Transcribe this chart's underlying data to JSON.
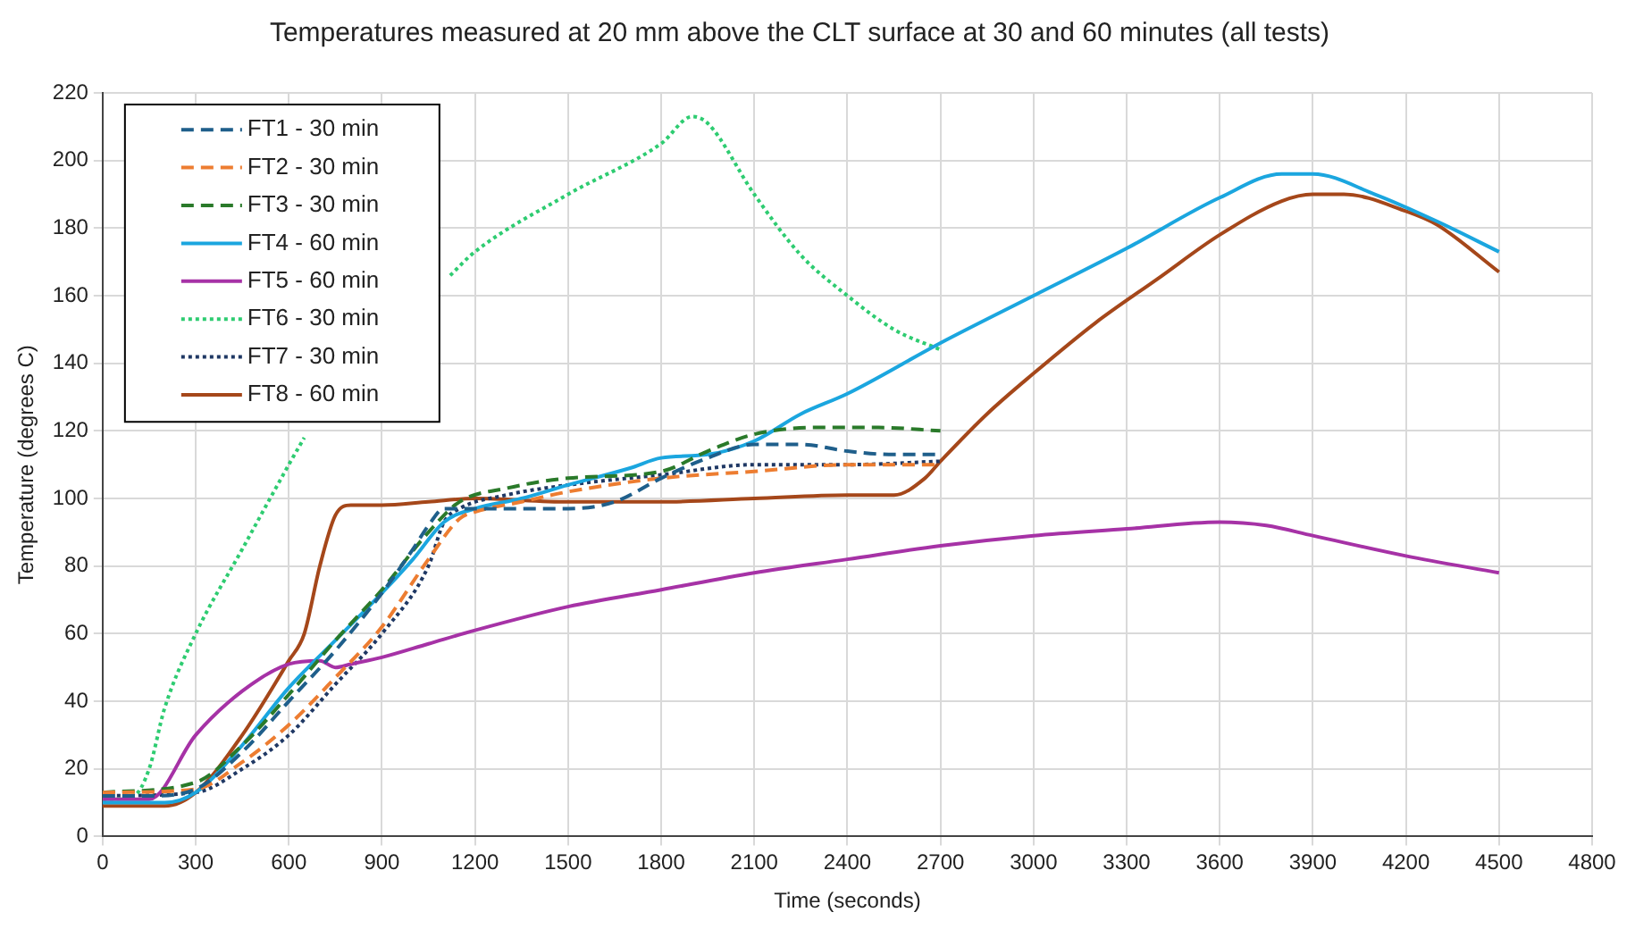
{
  "chart_data": {
    "type": "line",
    "title": "Temperatures measured at 20 mm above the CLT surface at 30 and 60 minutes (all tests)",
    "xlabel": "Time (seconds)",
    "ylabel": "Temperature (degrees C)",
    "xlim": [
      0,
      4800
    ],
    "xticks": [
      0,
      300,
      600,
      900,
      1200,
      1500,
      1800,
      2100,
      2400,
      2700,
      3000,
      3300,
      3600,
      3900,
      4200,
      4500,
      4800
    ],
    "ylim": [
      0,
      220
    ],
    "yticks": [
      0,
      20,
      40,
      60,
      80,
      100,
      120,
      140,
      160,
      180,
      200,
      220
    ],
    "grid": true,
    "legend": "top left",
    "marker": "none",
    "series": [
      {
        "name": "FT1 - 30 min",
        "color": "#1f5f8b",
        "line_style": "dashed",
        "x": [
          0,
          150,
          300,
          450,
          600,
          750,
          900,
          1000,
          1050,
          1100,
          1200,
          1300,
          1500,
          1650,
          1800,
          1950,
          2100,
          2250,
          2400,
          2550,
          2700
        ],
        "values": [
          12,
          12,
          14,
          25,
          40,
          55,
          72,
          85,
          92,
          97,
          97,
          97,
          97,
          99,
          106,
          112,
          116,
          116,
          114,
          113,
          113
        ]
      },
      {
        "name": "FT2 - 30 min",
        "color": "#ed7d31",
        "line_style": "dashed",
        "x": [
          0,
          300,
          450,
          600,
          750,
          900,
          1050,
          1150,
          1200,
          1350,
          1500,
          1800,
          2100,
          2400,
          2700
        ],
        "values": [
          13,
          14,
          22,
          33,
          47,
          62,
          82,
          94,
          96,
          99,
          102,
          106,
          108,
          110,
          110
        ]
      },
      {
        "name": "FT3 - 30 min",
        "color": "#2a7a2a",
        "line_style": "dashed",
        "x": [
          0,
          300,
          450,
          600,
          750,
          900,
          1050,
          1150,
          1300,
          1500,
          1800,
          1950,
          2100,
          2300,
          2500,
          2700
        ],
        "values": [
          13,
          16,
          27,
          42,
          58,
          73,
          90,
          99,
          103,
          106,
          108,
          114,
          119,
          121,
          121,
          120
        ]
      },
      {
        "name": "FT4 - 60 min",
        "color": "#1ba6df",
        "line_style": "solid",
        "x": [
          0,
          200,
          300,
          450,
          600,
          750,
          900,
          1000,
          1100,
          1200,
          1350,
          1500,
          1700,
          1800,
          1950,
          2100,
          2250,
          2400,
          2700,
          3000,
          3300,
          3600,
          3800,
          3900,
          4100,
          4300,
          4500
        ],
        "values": [
          10,
          10,
          13,
          27,
          44,
          58,
          72,
          82,
          93,
          97,
          100,
          104,
          109,
          112,
          113,
          117,
          125,
          131,
          146,
          160,
          174,
          189,
          196,
          196,
          190,
          182,
          173
        ]
      },
      {
        "name": "FT5 - 60 min",
        "color": "#a632a6",
        "line_style": "solid",
        "x": [
          0,
          150,
          300,
          450,
          600,
          700,
          750,
          800,
          900,
          1050,
          1200,
          1500,
          1800,
          2100,
          2400,
          2700,
          3000,
          3300,
          3600,
          3750,
          3900,
          4200,
          4500
        ],
        "values": [
          11,
          11,
          30,
          43,
          51,
          52,
          50,
          51,
          53,
          57,
          61,
          68,
          73,
          78,
          82,
          86,
          89,
          91,
          93,
          92,
          89,
          83,
          78
        ]
      },
      {
        "name": "FT6 - 30 min",
        "color": "#2ecc71",
        "line_style": "dotted",
        "x": [
          0,
          100,
          150,
          200,
          300,
          450,
          600,
          650,
          750,
          900,
          1050,
          1120,
          1200,
          1500,
          1800,
          1900,
          1950,
          2100,
          2250,
          2400,
          2550,
          2700
        ],
        "values": [
          11,
          12,
          20,
          38,
          60,
          85,
          110,
          118,
          null,
          null,
          null,
          166,
          173,
          190,
          205,
          213,
          211,
          190,
          172,
          160,
          150,
          144
        ]
      },
      {
        "name": "FT7 - 30 min",
        "color": "#1f3864",
        "line_style": "dotted",
        "x": [
          0,
          300,
          450,
          600,
          750,
          900,
          1050,
          1100,
          1150,
          1300,
          1500,
          1800,
          2100,
          2400,
          2700
        ],
        "values": [
          12,
          13,
          20,
          30,
          45,
          60,
          80,
          93,
          97,
          101,
          104,
          107,
          110,
          110,
          111
        ]
      },
      {
        "name": "FT8 - 60 min",
        "color": "#a5471a",
        "line_style": "solid",
        "x": [
          0,
          200,
          300,
          450,
          600,
          650,
          700,
          750,
          800,
          900,
          1050,
          1200,
          1500,
          1800,
          2100,
          2400,
          2550,
          2650,
          2700,
          2850,
          3000,
          3200,
          3400,
          3600,
          3800,
          3900,
          4000,
          4200,
          4300,
          4500
        ],
        "values": [
          9,
          9,
          13,
          30,
          52,
          60,
          80,
          95,
          98,
          98,
          99,
          100,
          99,
          99,
          100,
          101,
          101,
          106,
          111,
          125,
          137,
          152,
          165,
          178,
          188,
          190,
          190,
          185,
          181,
          167
        ]
      }
    ]
  }
}
